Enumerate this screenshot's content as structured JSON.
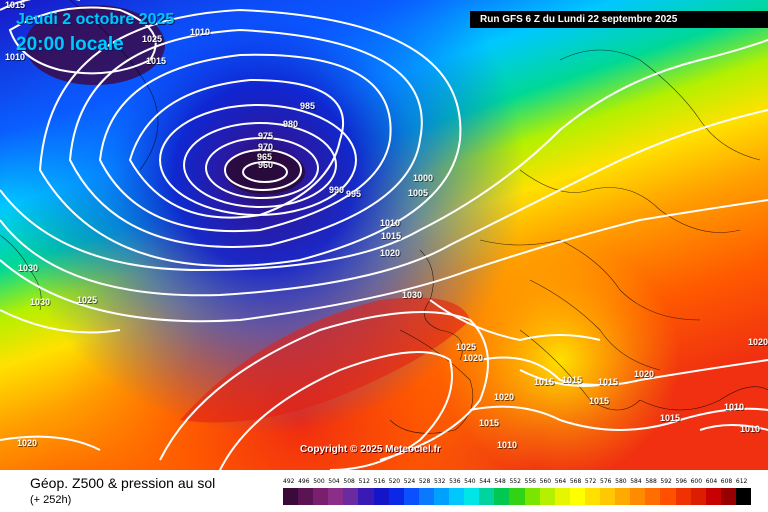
{
  "header": {
    "date": "Jeudi 2 octobre 2025",
    "local_time": "20:00 locale",
    "run": "Run GFS 6 Z du Lundi 22 septembre 2025"
  },
  "copyright": "Copyright © 2025 Meteociel.fr",
  "footer": {
    "title": "Géop. Z500 & pression au sol",
    "subtitle": "(+ 252h)"
  },
  "isobar_labels": [
    "1010",
    "1025",
    "1015",
    "1015",
    "1010",
    "985",
    "980",
    "975",
    "970",
    "965",
    "960",
    "990",
    "995",
    "1000",
    "1005",
    "1010",
    "1015",
    "1020",
    "1030",
    "1030",
    "1030",
    "1025",
    "1025",
    "1020",
    "1015",
    "1015",
    "1015",
    "1020",
    "1015",
    "1020",
    "1015",
    "1010",
    "1015",
    "1010",
    "1020",
    "1020",
    "1010"
  ],
  "scale": {
    "ticks": [
      "492",
      "496",
      "500",
      "504",
      "508",
      "512",
      "516",
      "520",
      "524",
      "528",
      "532",
      "536",
      "540",
      "544",
      "548",
      "552",
      "556",
      "560",
      "564",
      "568",
      "572",
      "576",
      "580",
      "584",
      "588",
      "592",
      "596",
      "600",
      "604",
      "608",
      "612"
    ],
    "colors": [
      "#3a0a3a",
      "#5a1454",
      "#7a1e6e",
      "#8a2e8a",
      "#6a2aa0",
      "#3a1ab4",
      "#1414c8",
      "#0a28e6",
      "#0a50ff",
      "#0a78ff",
      "#00a0ff",
      "#00c8ff",
      "#00e6e6",
      "#00d2a0",
      "#00c850",
      "#32d214",
      "#7ae600",
      "#b4f000",
      "#e6f500",
      "#ffff00",
      "#ffe100",
      "#ffc800",
      "#ffaa00",
      "#ff8c00",
      "#ff6e00",
      "#ff5000",
      "#f03200",
      "#dc1e00",
      "#c80000",
      "#960000",
      "#000000"
    ]
  },
  "palette": {
    "low_core": "#1a0a3a",
    "deep_blue": "#1020c0",
    "high_red": "#f04010",
    "isobar": "#ffffff"
  }
}
